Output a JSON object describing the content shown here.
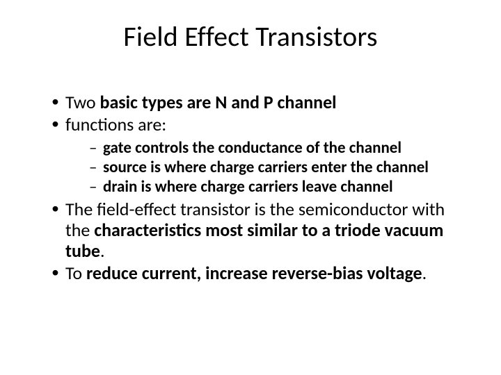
{
  "slide": {
    "title": "Field Effect Transistors",
    "bullets": {
      "b1_pre": "Two ",
      "b1_bold": "basic types are N and P channel",
      "b2_pre": "functions are:",
      "sub1": "gate controls the conductance of the channel",
      "sub2": "source is where charge carriers enter the channel",
      "sub3": "drain is where charge carriers leave channel",
      "b3_pre": "The field-effect transistor is the semiconductor with the ",
      "b3_bold": "characteristics most similar to a triode vacuum tube",
      "b3_post": ".",
      "b4_pre": "To ",
      "b4_bold": "reduce current, increase reverse-bias voltage",
      "b4_post": "."
    }
  },
  "style": {
    "background_color": "#ffffff",
    "text_color": "#000000",
    "font_family": "Calibri",
    "title_fontsize": 40,
    "body_fontsize": 26,
    "sub_fontsize": 23,
    "bullet_glyph": "•",
    "dash_glyph": "–"
  }
}
